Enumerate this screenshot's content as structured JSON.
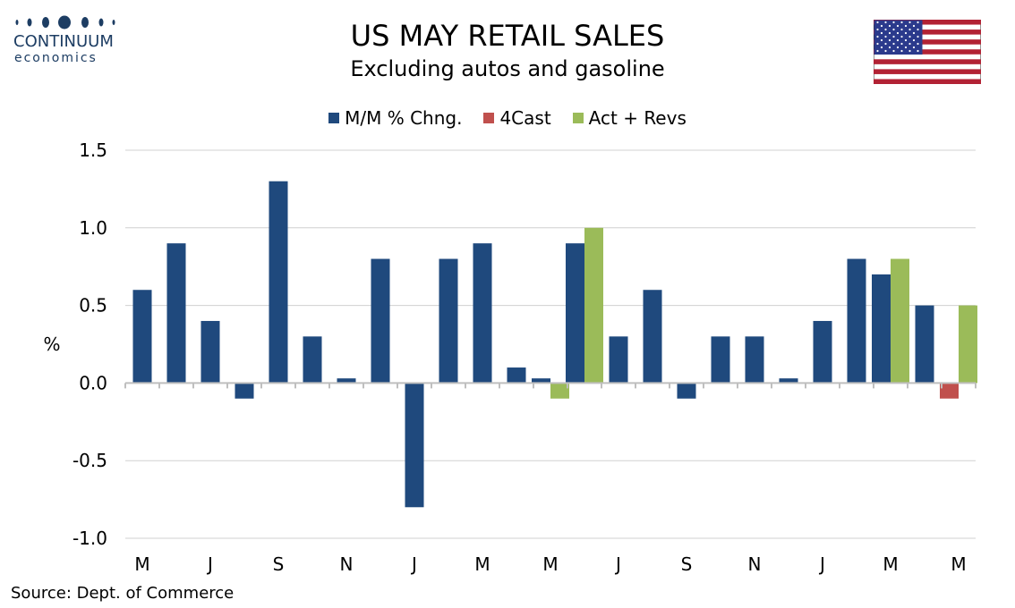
{
  "brand": {
    "name": "CONTINUUM",
    "sub": "economics"
  },
  "flag": "us-flag",
  "colors": {
    "actual": "#1f497d",
    "forecast": "#c0504d",
    "revised": "#9bbb59",
    "brand": "#1d3d63"
  },
  "chart_data": {
    "type": "bar",
    "title": "US MAY RETAIL SALES",
    "subtitle": "Excluding autos and gasoline",
    "ylabel": "%",
    "xlabel": "",
    "ylim": [
      -1.0,
      1.5
    ],
    "yticks": [
      "1.5",
      "1.0",
      "0.5",
      "0.0",
      "-0.5",
      "-1.0"
    ],
    "ytick_values": [
      1.5,
      1.0,
      0.5,
      0.0,
      -0.5,
      -1.0
    ],
    "grid": true,
    "legend_position": "top",
    "categories": [
      "M",
      "J",
      "J",
      "A",
      "S",
      "O",
      "N",
      "D",
      "J",
      "F",
      "M",
      "A",
      "M",
      "J",
      "J",
      "A",
      "S",
      "O",
      "N",
      "D",
      "J",
      "F",
      "M",
      "A",
      "M"
    ],
    "xtick_labels": [
      "M",
      "J",
      "S",
      "N",
      "J",
      "M",
      "M",
      "J",
      "S",
      "N",
      "J",
      "M",
      "M"
    ],
    "xtick_indices": [
      0,
      2,
      4,
      6,
      8,
      10,
      12,
      14,
      16,
      18,
      20,
      22,
      24
    ],
    "series": [
      {
        "name": "M/M % Chng.",
        "color": "#1f497d",
        "values": [
          0.6,
          0.9,
          0.4,
          -0.1,
          1.3,
          0.3,
          0.03,
          0.8,
          -0.8,
          0.8,
          0.9,
          0.1,
          0.03,
          0.9,
          0.3,
          0.6,
          -0.1,
          0.3,
          0.3,
          0.03,
          0.4,
          0.8,
          0.7,
          0.5,
          null
        ]
      },
      {
        "name": "4Cast",
        "color": "#c0504d",
        "values": [
          null,
          null,
          null,
          null,
          null,
          null,
          null,
          null,
          null,
          null,
          null,
          null,
          null,
          null,
          null,
          null,
          null,
          null,
          null,
          null,
          null,
          null,
          null,
          null,
          -0.1
        ]
      },
      {
        "name": "Act + Revs",
        "color": "#9bbb59",
        "values": [
          null,
          null,
          null,
          null,
          null,
          null,
          null,
          null,
          null,
          null,
          null,
          null,
          -0.1,
          1.0,
          null,
          null,
          null,
          null,
          null,
          null,
          null,
          null,
          0.8,
          null,
          0.5
        ]
      }
    ]
  },
  "source": "Source: Dept. of Commerce"
}
